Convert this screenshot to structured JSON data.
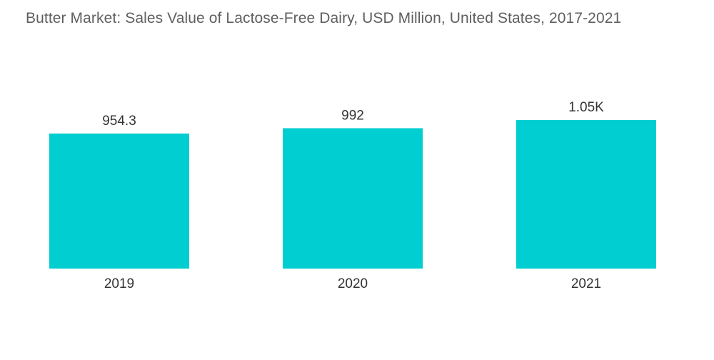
{
  "chart_data": {
    "type": "bar",
    "title": "Butter Market: Sales Value of Lactose-Free Dairy, USD Million, United States, 2017-2021",
    "categories": [
      "2019",
      "2020",
      "2021"
    ],
    "values": [
      954.3,
      992,
      1050
    ],
    "data_labels": [
      "954.3",
      "992",
      "1.05K"
    ],
    "xlabel": "",
    "ylabel": "",
    "ylim": [
      0,
      1050
    ],
    "grid": false,
    "legend": "none",
    "bar_color": "#00CED1"
  }
}
